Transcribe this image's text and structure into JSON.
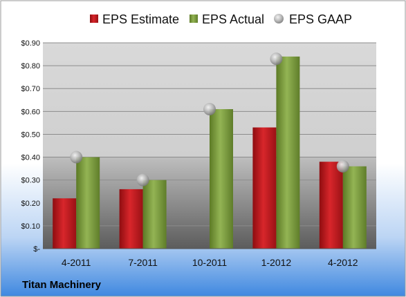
{
  "company": "Titan Machinery",
  "colors": {
    "estimate": "#c0161b",
    "actual": "#7a9a3a",
    "gaap": "#b4b4b4",
    "plot_top": "#d8d8d8",
    "plot_bottom": "#5e5e5e",
    "bg_top": "#ffffff",
    "bg_bottom": "#3f88e0"
  },
  "chart_data": {
    "type": "bar",
    "categories": [
      "4-2011",
      "7-2011",
      "10-2011",
      "1-2012",
      "4-2012"
    ],
    "series": [
      {
        "name": "EPS Estimate",
        "values": [
          0.22,
          0.26,
          null,
          0.53,
          0.38
        ]
      },
      {
        "name": "EPS Actual",
        "values": [
          0.4,
          0.3,
          0.61,
          0.84,
          0.36
        ]
      },
      {
        "name": "EPS GAAP",
        "values": [
          0.4,
          0.3,
          0.61,
          0.83,
          0.36
        ],
        "marker": "sphere"
      }
    ],
    "ylim": [
      0,
      0.9
    ],
    "yticks": [
      {
        "value": 0.9,
        "label": "$0.90"
      },
      {
        "value": 0.8,
        "label": "$0.80"
      },
      {
        "value": 0.7,
        "label": "$0.70"
      },
      {
        "value": 0.6,
        "label": "$0.60"
      },
      {
        "value": 0.5,
        "label": "$0.50"
      },
      {
        "value": 0.4,
        "label": "$0.40"
      },
      {
        "value": 0.3,
        "label": "$0.30"
      },
      {
        "value": 0.2,
        "label": "$0.20"
      },
      {
        "value": 0.1,
        "label": "$0.10"
      },
      {
        "value": 0.0,
        "label": "$-"
      }
    ],
    "legend": {
      "placement": "top",
      "entries": [
        "EPS Estimate",
        "EPS Actual",
        "EPS GAAP"
      ]
    },
    "grid": true
  }
}
